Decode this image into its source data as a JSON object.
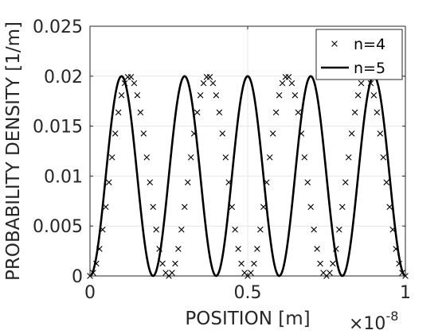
{
  "chart_data": {
    "type": "line",
    "title": "",
    "xlabel": "POSITION [m]",
    "ylabel": "PROBABILITY DENSITY [1/m]",
    "x_exponent_label": "×10",
    "x_exponent_power": "-8",
    "xlim": [
      0,
      1
    ],
    "ylim": [
      0,
      0.025
    ],
    "x_ticks": [
      0,
      0.5,
      1
    ],
    "x_tick_labels": [
      "0",
      "0.5",
      "1"
    ],
    "y_ticks": [
      0,
      0.005,
      0.01,
      0.015,
      0.02,
      0.025
    ],
    "y_tick_labels": [
      "0",
      "0.005",
      "0.01",
      "0.015",
      "0.02",
      "0.025"
    ],
    "grid": true,
    "legend_position": "top-right",
    "series": [
      {
        "name": "n=4",
        "style": "x-markers",
        "formula": "0.02*sin^2(4*pi*x)",
        "x": [
          0,
          0.01,
          0.02,
          0.03,
          0.04,
          0.05,
          0.06,
          0.07,
          0.08,
          0.09,
          0.1,
          0.11,
          0.12,
          0.13,
          0.14,
          0.15,
          0.16,
          0.17,
          0.18,
          0.19,
          0.2,
          0.21,
          0.22,
          0.23,
          0.24,
          0.25,
          0.26,
          0.27,
          0.28,
          0.29,
          0.3,
          0.31,
          0.32,
          0.33,
          0.34,
          0.35,
          0.36,
          0.37,
          0.38,
          0.39,
          0.4,
          0.41,
          0.42,
          0.43,
          0.44,
          0.45,
          0.46,
          0.47,
          0.48,
          0.49,
          0.5,
          0.51,
          0.52,
          0.53,
          0.54,
          0.55,
          0.56,
          0.57,
          0.58,
          0.59,
          0.6,
          0.61,
          0.62,
          0.63,
          0.64,
          0.65,
          0.66,
          0.67,
          0.68,
          0.69,
          0.7,
          0.71,
          0.72,
          0.73,
          0.74,
          0.75,
          0.76,
          0.77,
          0.78,
          0.79,
          0.8,
          0.81,
          0.82,
          0.83,
          0.84,
          0.85,
          0.86,
          0.87,
          0.88,
          0.89,
          0.9,
          0.91,
          0.92,
          0.93,
          0.94,
          0.95,
          0.96,
          0.97,
          0.98,
          0.99,
          1
        ]
      },
      {
        "name": "n=5",
        "style": "solid-line",
        "formula": "0.02*sin^2(5*pi*x)",
        "samples": 400
      }
    ],
    "colors": {
      "n=4": "#000000",
      "n=5": "#000000",
      "grid": "#e6e6e6",
      "axes": "#262626"
    }
  }
}
